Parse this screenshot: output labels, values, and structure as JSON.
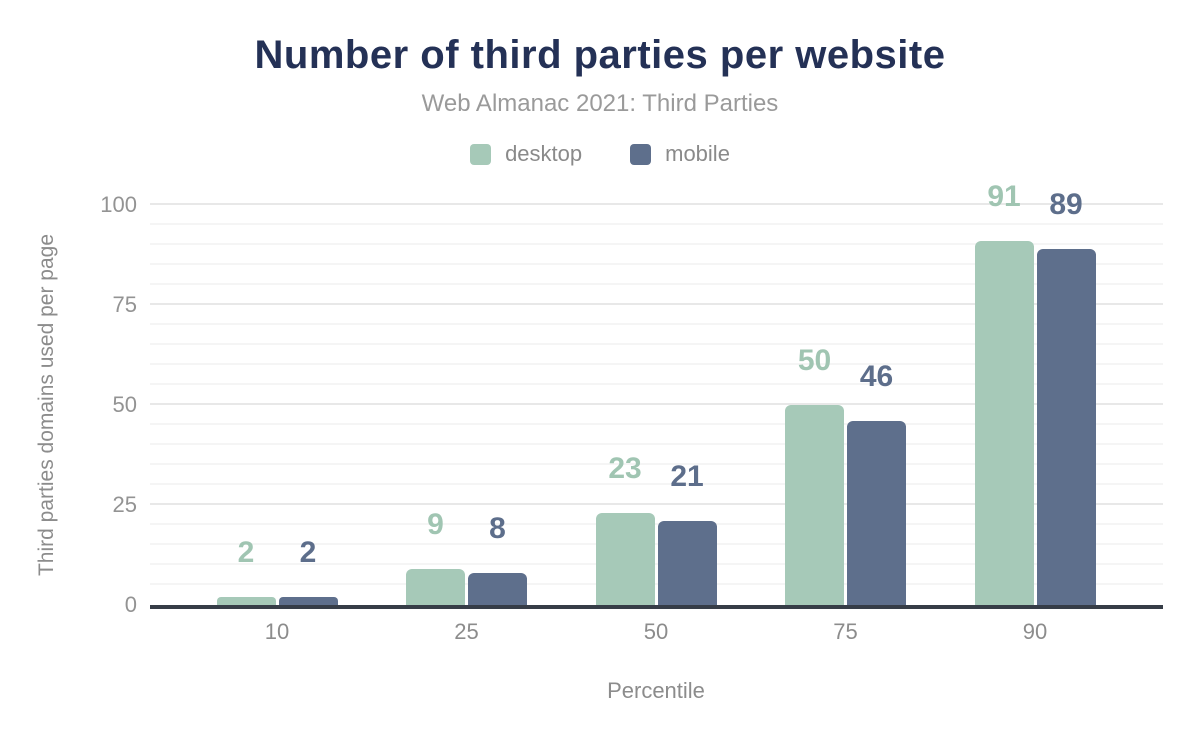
{
  "chart": {
    "title": "Number of third parties per website",
    "subtitle": "Web Almanac 2021: Third Parties"
  },
  "chart_data": {
    "type": "bar",
    "title": "Number of third parties per website",
    "subtitle": "Web Almanac 2021: Third Parties",
    "categories": [
      "10",
      "25",
      "50",
      "75",
      "90"
    ],
    "series": [
      {
        "name": "desktop",
        "color": "#a6c9b8",
        "label_color": "#a0c5b2",
        "values": [
          2,
          9,
          23,
          50,
          91
        ]
      },
      {
        "name": "mobile",
        "color": "#5e6f8c",
        "label_color": "#5d6e8b",
        "values": [
          2,
          8,
          21,
          46,
          89
        ]
      }
    ],
    "xlabel": "Percentile",
    "ylabel": "Third parties domains used per page",
    "ylim": [
      0,
      100
    ],
    "yticks": [
      0,
      25,
      50,
      75,
      100
    ],
    "grid": "horizontal, minor line every 5 units, major every 25",
    "legend_position": "top-center",
    "bar_value_labels": true
  },
  "colors": {
    "title": "#243156",
    "subtitle": "#9a9a9a",
    "legend_text": "#8a8a8a",
    "tick_text": "#939393",
    "axis_title_text": "#8c8c8c",
    "axis_line": "#363d47",
    "gridline_minor": "#f5f5f5",
    "gridline_major": "#e8e8e8",
    "background": "#ffffff"
  }
}
